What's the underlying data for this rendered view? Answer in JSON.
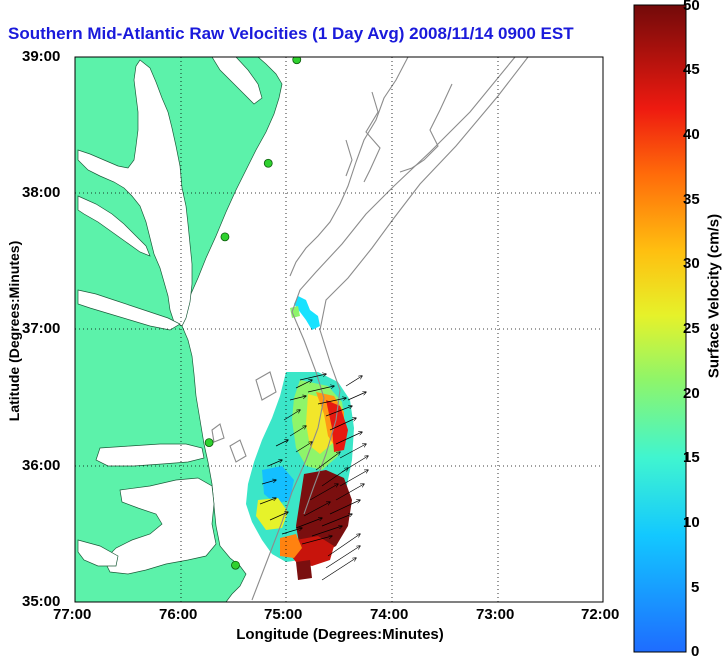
{
  "title": "Southern Mid-Atlantic Raw Velocities (1 Day Avg) 2008/11/14 0900 EST",
  "axes": {
    "xlabel": "Longitude (Degrees:Minutes)",
    "ylabel": "Latitude (Degrees:Minutes)",
    "x_ticks": [
      "77:00",
      "76:00",
      "75:00",
      "74:00",
      "73:00",
      "72:00"
    ],
    "y_ticks": [
      "39:00",
      "38:00",
      "37:00",
      "36:00",
      "35:00"
    ]
  },
  "colorbar": {
    "label": "Surface Velocity (cm/s)",
    "ticks": [
      "0",
      "5",
      "10",
      "15",
      "20",
      "25",
      "30",
      "35",
      "40",
      "45",
      "50"
    ],
    "min": 0,
    "max": 50
  },
  "colors": {
    "land": "#5cf2aa",
    "water": "#ffffff",
    "title": "#1a1adb",
    "bathymetry": "#8c8c8c",
    "grid": "#000000",
    "station": "#2fd12f"
  },
  "map_extent": {
    "lon": [
      -77,
      -72
    ],
    "lat": [
      35,
      39
    ]
  },
  "stations": [
    {
      "lon": -74.9,
      "lat": 38.98
    },
    {
      "lon": -75.17,
      "lat": 38.22
    },
    {
      "lon": -75.58,
      "lat": 37.68
    },
    {
      "lon": -75.73,
      "lat": 36.17
    },
    {
      "lon": -75.48,
      "lat": 35.27
    }
  ]
}
